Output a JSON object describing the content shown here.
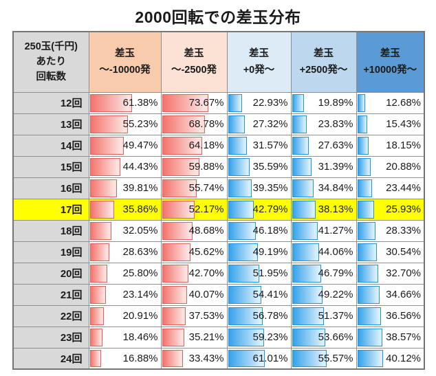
{
  "title": "2000回転での差玉分布",
  "colors": {
    "page_bg": "#FFFFFF",
    "corner_header_bg": "#D9D9D9",
    "row_label_bg": "#D9D9D9",
    "highlight_row_bg": "#FFFF00",
    "table_border": "#8F8F8F",
    "red_bar_fill": "#F4736C",
    "red_bar_border": "#E4605B",
    "blue_bar_fill": "#35A2EA",
    "blue_bar_border": "#2193E0"
  },
  "chart_data": {
    "type": "table",
    "title": "2000回転での差玉分布",
    "corner_header_lines": [
      "250玉(千円)",
      "あたり",
      "回転数"
    ],
    "value_unit": "%",
    "highlighted_row_label": "17回",
    "columns": [
      {
        "label_line1": "差玉",
        "label_line2": "〜-10000発",
        "header_bg": "#F8CBAD",
        "bar_style": "red"
      },
      {
        "label_line1": "差玉",
        "label_line2": "〜-2500発",
        "header_bg": "#FBE2D5",
        "bar_style": "red"
      },
      {
        "label_line1": "差玉",
        "label_line2": "+0発〜",
        "header_bg": "#DDEBF7",
        "bar_style": "blue"
      },
      {
        "label_line1": "差玉",
        "label_line2": "+2500発〜",
        "header_bg": "#BDD7EE",
        "bar_style": "blue"
      },
      {
        "label_line1": "差玉",
        "label_line2": "+10000発〜",
        "header_bg": "#5B9BD5",
        "bar_style": "blue"
      }
    ],
    "rows": [
      {
        "label": "12回",
        "highlight": false,
        "values": [
          61.38,
          73.67,
          22.93,
          19.89,
          12.68
        ]
      },
      {
        "label": "13回",
        "highlight": false,
        "values": [
          55.23,
          68.78,
          27.32,
          23.83,
          15.43
        ]
      },
      {
        "label": "14回",
        "highlight": false,
        "values": [
          49.47,
          64.18,
          31.57,
          27.63,
          18.15
        ]
      },
      {
        "label": "15回",
        "highlight": false,
        "values": [
          44.43,
          59.88,
          35.59,
          31.39,
          20.88
        ]
      },
      {
        "label": "16回",
        "highlight": false,
        "values": [
          39.81,
          55.74,
          39.35,
          34.84,
          23.44
        ]
      },
      {
        "label": "17回",
        "highlight": true,
        "values": [
          35.86,
          52.17,
          42.79,
          38.13,
          25.93
        ]
      },
      {
        "label": "18回",
        "highlight": false,
        "values": [
          32.05,
          48.68,
          46.18,
          41.27,
          28.33
        ]
      },
      {
        "label": "19回",
        "highlight": false,
        "values": [
          28.63,
          45.62,
          49.19,
          44.06,
          30.54
        ]
      },
      {
        "label": "20回",
        "highlight": false,
        "values": [
          25.8,
          42.7,
          51.95,
          46.79,
          32.7
        ]
      },
      {
        "label": "21回",
        "highlight": false,
        "values": [
          23.14,
          40.07,
          54.41,
          49.22,
          34.66
        ]
      },
      {
        "label": "22回",
        "highlight": false,
        "values": [
          20.91,
          37.53,
          56.78,
          51.37,
          36.56
        ]
      },
      {
        "label": "23回",
        "highlight": false,
        "values": [
          18.46,
          35.21,
          59.23,
          53.66,
          38.57
        ]
      },
      {
        "label": "24回",
        "highlight": false,
        "values": [
          16.88,
          33.43,
          61.01,
          55.57,
          40.12
        ]
      }
    ]
  }
}
